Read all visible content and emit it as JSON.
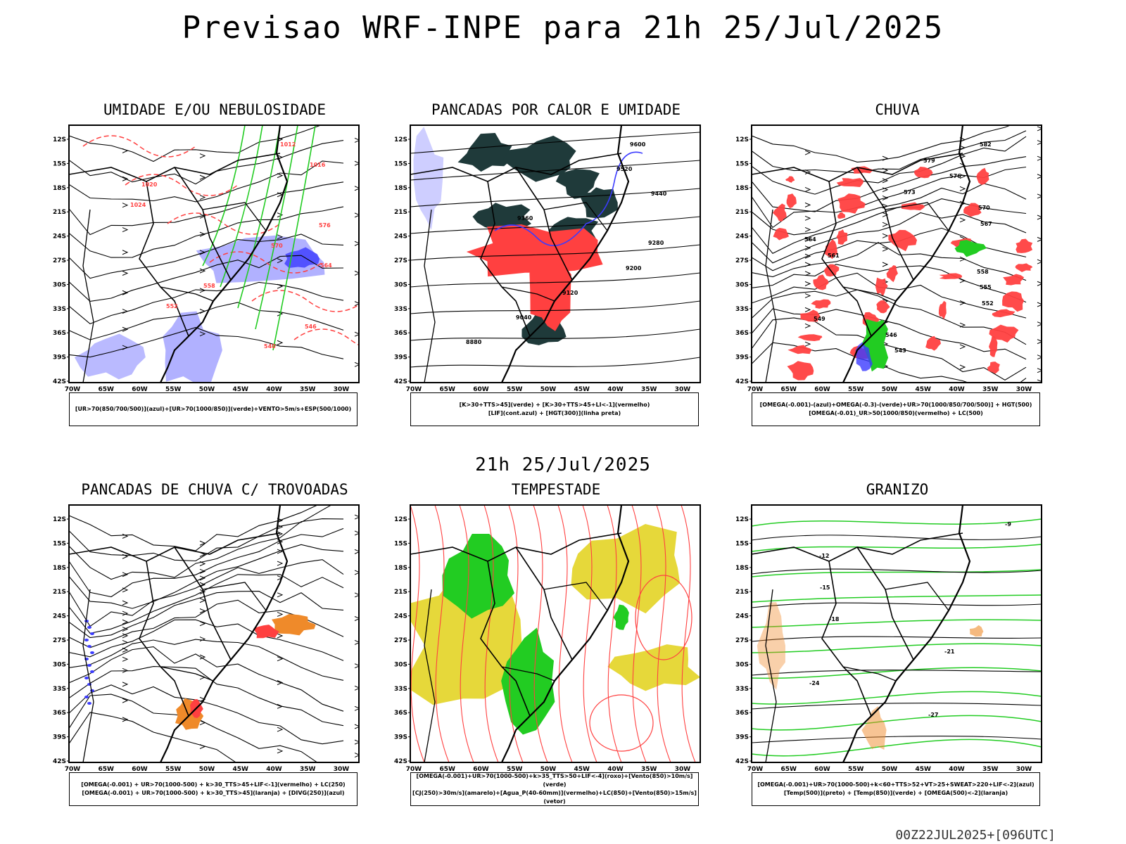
{
  "title": "Previsao WRF-INPE  para 21h 25/Jul/2025",
  "subtitle": "21h 25/Jul/2025",
  "footer": "00Z22JUL2025+[096UTC]",
  "lat_labels": [
    "12S",
    "15S",
    "18S",
    "21S",
    "24S",
    "27S",
    "30S",
    "33S",
    "36S",
    "39S",
    "42S"
  ],
  "lon_labels": [
    "70W",
    "65W",
    "60W",
    "55W",
    "50W",
    "45W",
    "40W",
    "35W",
    "30W"
  ],
  "panels": [
    {
      "title": "UMIDADE E/OU NEBULOSIDADE",
      "legend": [
        "[UR>70(850/700/500)](azul)+[UR>70(1000/850)](verde)+VENTO>5m/s+ESP(500/1000)"
      ],
      "theme": "humidity",
      "contour_labels": [
        "1012",
        "1016",
        "1020",
        "1024",
        "576",
        "570",
        "564",
        "558",
        "552",
        "546",
        "540"
      ]
    },
    {
      "title": "PANCADAS POR CALOR E UMIDADE",
      "legend": [
        "[K>30+TTS>45](verde) + [K>30+TTS>45+LI<-1](vermelho)",
        "[LIF](cont.azul) + [HGT(300)](linha preta)"
      ],
      "theme": "heat",
      "contour_labels": [
        "9600",
        "9520",
        "9440",
        "9360",
        "9280",
        "9200",
        "9120",
        "9040",
        "8880"
      ]
    },
    {
      "title": "CHUVA",
      "legend": [
        "[OMEGA(-0.001)-(azul)+OMEGA(-0.3)-(verde)+UR>70(1000/850/700/500)] + HGT(500)",
        "[OMEGA(-0.01)_UR>50(1000/850)(vermelho) + LC(500)"
      ],
      "theme": "rain",
      "contour_labels": [
        "582",
        "579",
        "576",
        "573",
        "570",
        "567",
        "564",
        "561",
        "558",
        "555",
        "552",
        "549",
        "546",
        "543"
      ]
    },
    {
      "title": "PANCADAS DE CHUVA C/ TROVOADAS",
      "legend": [
        "[OMEGA(-0.001) + UR>70(1000-500) + k>30_TTS>45+LIF<-1](vermelho) + LC(250)",
        "[OMEGA(-0.001) + UR>70(1000-500) + k>30_TTS>45](laranja) + [DIVG(250)](azul)"
      ],
      "theme": "thunder",
      "contour_labels": []
    },
    {
      "title": "TEMPESTADE",
      "legend": [
        "[OMEGA(-0.001)+UR>70(1000-500)+k>35_TTS>50+LIF<-4](roxo)+[Vento(850)>10m/s](verde)",
        "[CJ(250)>30m/s](amarelo)+[Agua_P(40-60mm)](vermelho)+LC(850)+[Vento(850)>15m/s](vetor)"
      ],
      "theme": "storm",
      "contour_labels": []
    },
    {
      "title": "GRANIZO",
      "legend": [
        "[OMEGA(-0.001)+UR>70(1000-500)+k<60+TTS>52+VT>25+SWEAT>220+LIF<-2](azul)",
        "[Temp(500)](preto) + [Temp(850)](verde) + [OMEGA(500)<-2](laranja)"
      ],
      "theme": "hail",
      "contour_labels": [
        "-9",
        "-12",
        "-15",
        "-18",
        "-21",
        "-24",
        "-27"
      ]
    }
  ],
  "colors": {
    "blue": "#3b3bff",
    "lightblue": "#a9a9ff",
    "green": "#22cc22",
    "red": "#ff4040",
    "darkteal": "#1f3a3a",
    "yellow": "#e6d83a",
    "orange": "#ef8a2a"
  }
}
